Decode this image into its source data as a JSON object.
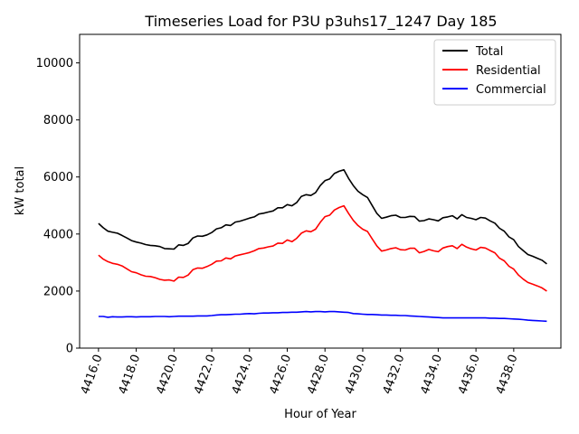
{
  "chart_data": {
    "type": "line",
    "title": "Timeseries Load for P3U p3uhs17_1247  Day 185",
    "xlabel": "Hour of Year",
    "ylabel": "kW total",
    "xlim": [
      4415.0,
      4440.5
    ],
    "ylim": [
      0,
      11000
    ],
    "xticks": [
      4416,
      4418,
      4420,
      4422,
      4424,
      4426,
      4428,
      4430,
      4432,
      4434,
      4436,
      4438
    ],
    "xtick_labels": [
      "4416.0",
      "4418.0",
      "4420.0",
      "4422.0",
      "4424.0",
      "4426.0",
      "4428.0",
      "4430.0",
      "4432.0",
      "4434.0",
      "4436.0",
      "4438.0"
    ],
    "yticks": [
      0,
      2000,
      4000,
      6000,
      8000,
      10000
    ],
    "ytick_labels": [
      "0",
      "2000",
      "4000",
      "6000",
      "8000",
      "10000"
    ],
    "legend_position": "top-right",
    "x": [
      4416.0,
      4416.25,
      4416.5,
      4416.75,
      4417.0,
      4417.25,
      4417.5,
      4417.75,
      4418.0,
      4418.25,
      4418.5,
      4418.75,
      4419.0,
      4419.25,
      4419.5,
      4419.75,
      4420.0,
      4420.25,
      4420.5,
      4420.75,
      4421.0,
      4421.25,
      4421.5,
      4421.75,
      4422.0,
      4422.25,
      4422.5,
      4422.75,
      4423.0,
      4423.25,
      4423.5,
      4423.75,
      4424.0,
      4424.25,
      4424.5,
      4424.75,
      4425.0,
      4425.25,
      4425.5,
      4425.75,
      4426.0,
      4426.25,
      4426.5,
      4426.75,
      4427.0,
      4427.25,
      4427.5,
      4427.75,
      4428.0,
      4428.25,
      4428.5,
      4428.75,
      4429.0,
      4429.25,
      4429.5,
      4429.75,
      4430.0,
      4430.25,
      4430.5,
      4430.75,
      4431.0,
      4431.25,
      4431.5,
      4431.75,
      4432.0,
      4432.25,
      4432.5,
      4432.75,
      4433.0,
      4433.25,
      4433.5,
      4433.75,
      4434.0,
      4434.25,
      4434.5,
      4434.75,
      4435.0,
      4435.25,
      4435.5,
      4435.75,
      4436.0,
      4436.25,
      4436.5,
      4436.75,
      4437.0,
      4437.25,
      4437.5,
      4437.75,
      4438.0,
      4438.25,
      4438.5,
      4438.75,
      4439.0,
      4439.25,
      4439.5,
      4439.75
    ],
    "series": [
      {
        "name": "Total",
        "color": "#000000",
        "values": [
          4370,
          4220,
          4100,
          4060,
          4030,
          3950,
          3860,
          3770,
          3720,
          3680,
          3630,
          3600,
          3590,
          3560,
          3490,
          3480,
          3470,
          3620,
          3600,
          3670,
          3860,
          3930,
          3920,
          3970,
          4050,
          4180,
          4220,
          4320,
          4300,
          4420,
          4450,
          4500,
          4560,
          4600,
          4700,
          4730,
          4770,
          4810,
          4920,
          4920,
          5030,
          4990,
          5100,
          5320,
          5380,
          5350,
          5450,
          5700,
          5870,
          5930,
          6120,
          6200,
          6250,
          5950,
          5700,
          5500,
          5380,
          5280,
          5000,
          4720,
          4550,
          4590,
          4640,
          4660,
          4580,
          4580,
          4620,
          4610,
          4450,
          4470,
          4530,
          4500,
          4460,
          4570,
          4600,
          4640,
          4530,
          4680,
          4580,
          4550,
          4500,
          4580,
          4560,
          4460,
          4380,
          4200,
          4100,
          3900,
          3800,
          3560,
          3420,
          3280,
          3220,
          3150,
          3080,
          2950
        ]
      },
      {
        "name": "Residential",
        "color": "#ff0000",
        "values": [
          3260,
          3120,
          3030,
          2970,
          2940,
          2880,
          2780,
          2680,
          2640,
          2570,
          2520,
          2510,
          2470,
          2410,
          2380,
          2390,
          2350,
          2490,
          2480,
          2560,
          2750,
          2810,
          2800,
          2860,
          2940,
          3050,
          3060,
          3160,
          3130,
          3230,
          3270,
          3310,
          3350,
          3410,
          3490,
          3510,
          3550,
          3580,
          3680,
          3670,
          3790,
          3730,
          3850,
          4030,
          4110,
          4080,
          4170,
          4410,
          4610,
          4660,
          4840,
          4930,
          4990,
          4720,
          4480,
          4300,
          4170,
          4090,
          3830,
          3580,
          3400,
          3440,
          3490,
          3520,
          3450,
          3440,
          3500,
          3500,
          3340,
          3390,
          3460,
          3410,
          3380,
          3510,
          3560,
          3590,
          3490,
          3640,
          3540,
          3480,
          3440,
          3530,
          3510,
          3420,
          3340,
          3150,
          3060,
          2870,
          2770,
          2560,
          2420,
          2300,
          2240,
          2180,
          2110,
          2000
        ]
      },
      {
        "name": "Commercial",
        "color": "#0000ff",
        "values": [
          1110,
          1110,
          1080,
          1100,
          1090,
          1090,
          1100,
          1100,
          1090,
          1100,
          1100,
          1100,
          1110,
          1110,
          1110,
          1100,
          1110,
          1120,
          1120,
          1120,
          1120,
          1130,
          1130,
          1130,
          1140,
          1160,
          1170,
          1170,
          1180,
          1190,
          1190,
          1200,
          1210,
          1200,
          1220,
          1230,
          1230,
          1240,
          1240,
          1250,
          1250,
          1260,
          1260,
          1270,
          1280,
          1270,
          1280,
          1280,
          1270,
          1280,
          1280,
          1270,
          1260,
          1250,
          1210,
          1200,
          1190,
          1180,
          1180,
          1170,
          1160,
          1160,
          1150,
          1150,
          1140,
          1140,
          1130,
          1120,
          1110,
          1100,
          1090,
          1080,
          1070,
          1060,
          1060,
          1060,
          1060,
          1060,
          1060,
          1060,
          1060,
          1060,
          1060,
          1050,
          1050,
          1040,
          1040,
          1030,
          1020,
          1010,
          1000,
          980,
          970,
          960,
          950,
          940
        ]
      }
    ]
  }
}
